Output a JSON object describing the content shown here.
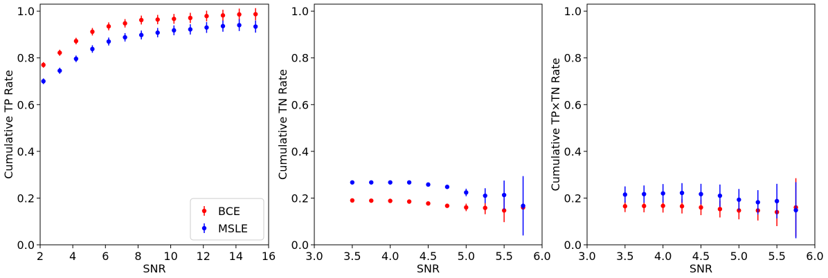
{
  "chart_data": [
    {
      "type": "scatter",
      "xlabel": "SNR",
      "ylabel": "Cumulative TP Rate",
      "xlim": [
        2,
        16
      ],
      "ylim": [
        0.0,
        1.03
      ],
      "xticks": [
        "2",
        "4",
        "6",
        "8",
        "10",
        "12",
        "14",
        "16"
      ],
      "yticks": [
        "0.0",
        "0.2",
        "0.4",
        "0.6",
        "0.8",
        "1.0"
      ],
      "legend": {
        "placement": "lower-right",
        "entries": [
          "BCE",
          "MSLE"
        ]
      },
      "series": [
        {
          "name": "BCE",
          "color": "#ff0000",
          "x": [
            2.2,
            3.2,
            4.2,
            5.2,
            6.2,
            7.2,
            8.2,
            9.2,
            10.2,
            11.2,
            12.2,
            13.2,
            14.2,
            15.2
          ],
          "y": [
            0.77,
            0.822,
            0.872,
            0.912,
            0.935,
            0.948,
            0.962,
            0.964,
            0.967,
            0.971,
            0.979,
            0.982,
            0.986,
            0.987
          ],
          "yerr": [
            0.012,
            0.013,
            0.014,
            0.016,
            0.017,
            0.018,
            0.019,
            0.02,
            0.021,
            0.022,
            0.023,
            0.024,
            0.025,
            0.026
          ]
        },
        {
          "name": "MSLE",
          "color": "#0000ff",
          "x": [
            2.2,
            3.2,
            4.2,
            5.2,
            6.2,
            7.2,
            8.2,
            9.2,
            10.2,
            11.2,
            12.2,
            13.2,
            14.2,
            15.2
          ],
          "y": [
            0.7,
            0.745,
            0.796,
            0.838,
            0.87,
            0.888,
            0.898,
            0.908,
            0.918,
            0.922,
            0.93,
            0.936,
            0.94,
            0.934
          ],
          "yerr": [
            0.012,
            0.013,
            0.014,
            0.016,
            0.017,
            0.018,
            0.019,
            0.02,
            0.021,
            0.022,
            0.023,
            0.024,
            0.025,
            0.026
          ]
        }
      ]
    },
    {
      "type": "scatter",
      "xlabel": "SNR",
      "ylabel": "Cumulative TN Rate",
      "xlim": [
        3.0,
        6.0
      ],
      "ylim": [
        0.0,
        1.03
      ],
      "xticks": [
        "3.0",
        "3.5",
        "4.0",
        "4.5",
        "5.0",
        "5.5",
        "6.0"
      ],
      "yticks": [
        "0.0",
        "0.2",
        "0.4",
        "0.6",
        "0.8",
        "1.0"
      ],
      "series": [
        {
          "name": "BCE",
          "color": "#ff0000",
          "x": [
            3.5,
            3.75,
            4.0,
            4.25,
            4.5,
            4.75,
            5.0,
            5.25,
            5.5,
            5.75
          ],
          "y": [
            0.19,
            0.189,
            0.188,
            0.185,
            0.177,
            0.167,
            0.16,
            0.158,
            0.147,
            0.16
          ],
          "yerr": [
            0.003,
            0.004,
            0.004,
            0.005,
            0.006,
            0.009,
            0.016,
            0.027,
            0.05,
            0.0
          ]
        },
        {
          "name": "MSLE",
          "color": "#0000ff",
          "x": [
            3.5,
            3.75,
            4.0,
            4.25,
            4.5,
            4.75,
            5.0,
            5.25,
            5.5,
            5.75
          ],
          "y": [
            0.267,
            0.267,
            0.267,
            0.267,
            0.258,
            0.248,
            0.224,
            0.21,
            0.213,
            0.167
          ],
          "yerr": [
            0.003,
            0.004,
            0.004,
            0.005,
            0.006,
            0.009,
            0.016,
            0.032,
            0.062,
            0.127
          ]
        }
      ]
    },
    {
      "type": "scatter",
      "xlabel": "SNR",
      "ylabel": "Cumulative TP×TN Rate",
      "xlim": [
        3.0,
        6.0
      ],
      "ylim": [
        0.0,
        1.03
      ],
      "xticks": [
        "3.0",
        "3.5",
        "4.0",
        "4.5",
        "5.0",
        "5.5",
        "6.0"
      ],
      "yticks": [
        "0.0",
        "0.2",
        "0.4",
        "0.6",
        "0.8",
        "1.0"
      ],
      "series": [
        {
          "name": "BCE",
          "color": "#ff0000",
          "x": [
            3.5,
            3.75,
            4.0,
            4.25,
            4.5,
            4.75,
            5.0,
            5.25,
            5.5,
            5.75
          ],
          "y": [
            0.165,
            0.166,
            0.167,
            0.165,
            0.16,
            0.153,
            0.147,
            0.147,
            0.14,
            0.16
          ],
          "yerr": [
            0.025,
            0.027,
            0.029,
            0.031,
            0.033,
            0.036,
            0.038,
            0.043,
            0.06,
            0.125
          ]
        },
        {
          "name": "MSLE",
          "color": "#0000ff",
          "x": [
            3.5,
            3.75,
            4.0,
            4.25,
            4.5,
            4.75,
            5.0,
            5.25,
            5.5,
            5.75
          ],
          "y": [
            0.215,
            0.217,
            0.22,
            0.222,
            0.217,
            0.21,
            0.193,
            0.182,
            0.187,
            0.148
          ],
          "yerr": [
            0.035,
            0.037,
            0.04,
            0.042,
            0.044,
            0.048,
            0.046,
            0.052,
            0.074,
            0.12
          ]
        }
      ]
    }
  ]
}
